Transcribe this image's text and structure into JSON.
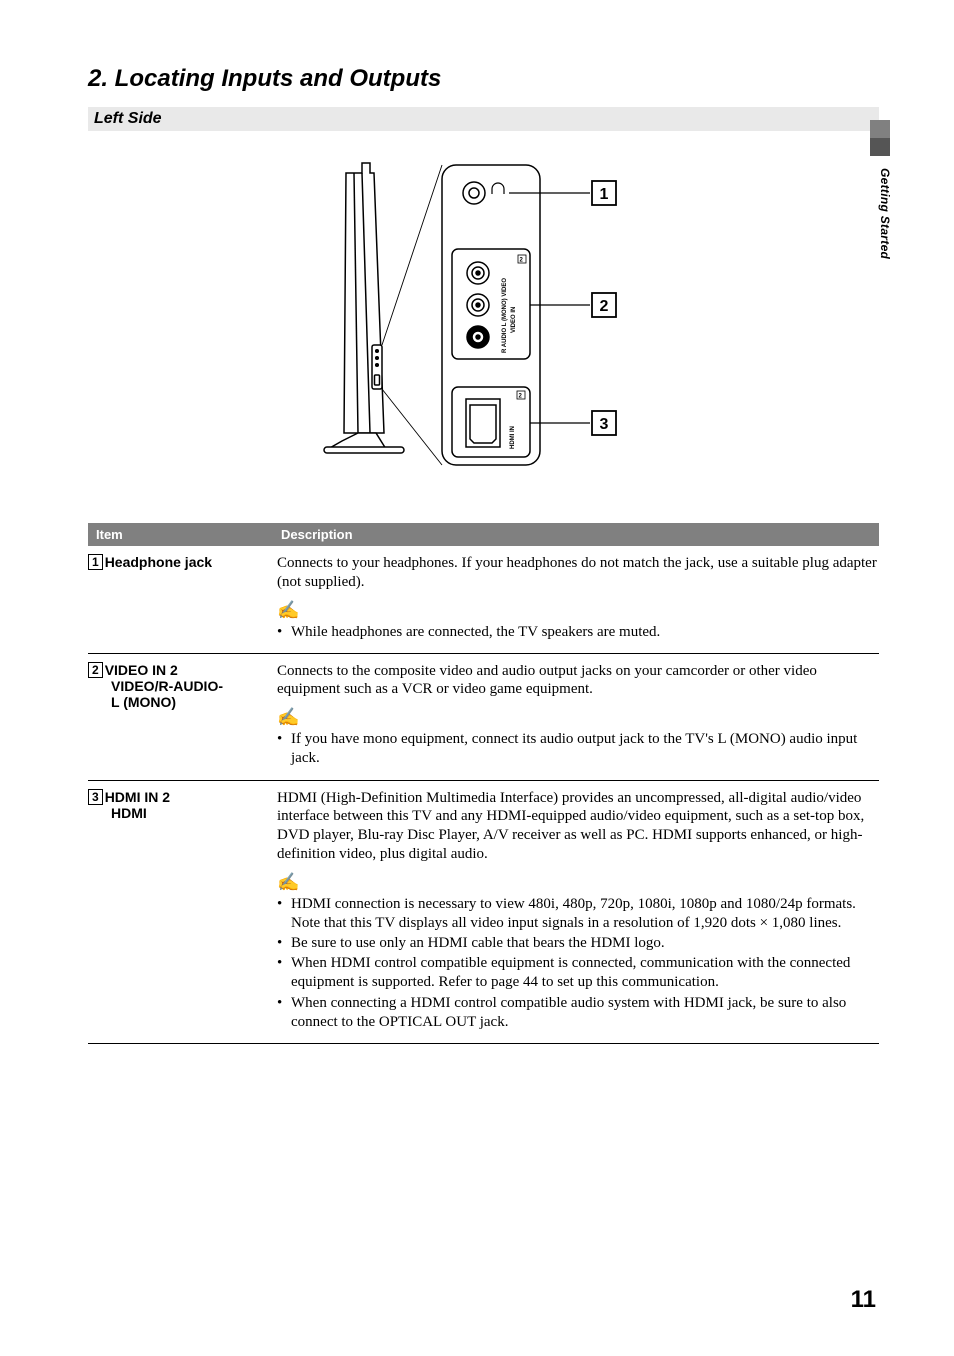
{
  "page": {
    "title": "2. Locating Inputs and Outputs",
    "subtitle": "Left Side",
    "side_label": "Getting Started",
    "page_number": "11"
  },
  "diagram": {
    "callouts": [
      "1",
      "2",
      "3"
    ],
    "panel_labels": {
      "jack_group": "R  AUDIO  L (MONO)  VIDEO",
      "video_in": "VIDEO IN",
      "video_in_num": "2",
      "hdmi_in": "HDMI IN",
      "hdmi_in_num": "2"
    },
    "colors": {
      "stroke": "#000000",
      "fill": "#ffffff",
      "callout_stroke": "#000000"
    }
  },
  "table": {
    "headers": [
      "Item",
      "Description"
    ],
    "rows": [
      {
        "num": "1",
        "item_lines": [
          "Headphone jack"
        ],
        "desc_paras": [
          "Connects to your headphones. If your headphones do not match the jack, use a suitable plug adapter (not supplied)."
        ],
        "note_bullets": [
          "While headphones are connected, the TV speakers are muted."
        ]
      },
      {
        "num": "2",
        "item_lines": [
          "VIDEO IN 2",
          "VIDEO/R-AUDIO-",
          "L (MONO)"
        ],
        "desc_paras": [
          "Connects to the composite video and audio output jacks on your camcorder or other video equipment such as a VCR or video game equipment."
        ],
        "note_bullets": [
          "If you have mono equipment, connect its audio output jack to the TV's L (MONO) audio input jack."
        ]
      },
      {
        "num": "3",
        "item_lines": [
          "HDMI IN 2",
          "HDMI"
        ],
        "desc_paras": [
          "HDMI (High-Definition Multimedia Interface) provides an uncompressed, all-digital audio/video interface between this TV and any HDMI-equipped audio/video equipment, such as a set-top box, DVD player, Blu-ray Disc Player, A/V receiver as well as PC. HDMI supports enhanced, or high-definition video, plus digital audio."
        ],
        "note_bullets": [
          "HDMI connection is necessary to view 480i, 480p, 720p, 1080i, 1080p and 1080/24p formats. Note that this TV displays all video input signals in a resolution of 1,920 dots × 1,080 lines.",
          "Be sure to use only an HDMI cable that bears the HDMI logo.",
          "When HDMI control compatible equipment is connected, communication with the connected equipment is supported. Refer to page 44 to set up this communication.",
          "When connecting a HDMI control compatible audio system with HDMI jack, be sure to also connect to the OPTICAL OUT jack."
        ]
      }
    ]
  }
}
